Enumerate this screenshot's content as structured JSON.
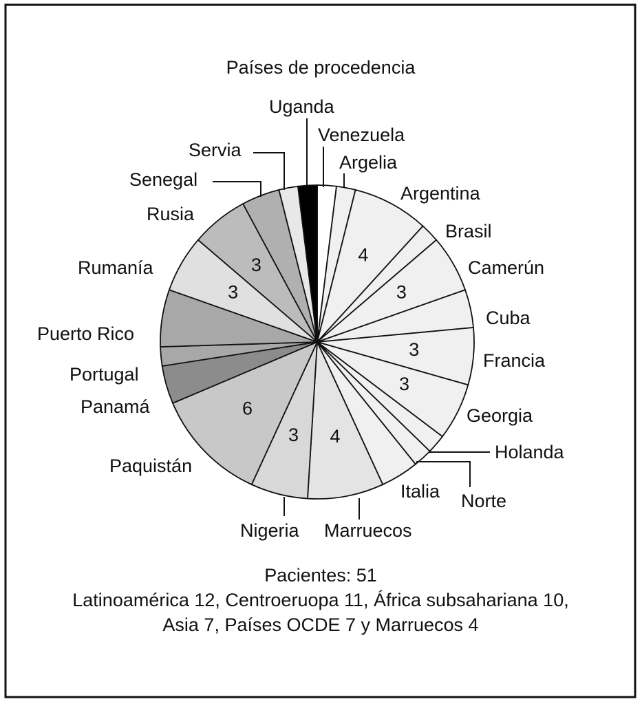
{
  "chart_data": {
    "type": "pie",
    "title": "Países de procedencia",
    "categories": [
      "Venezuela",
      "Argelia",
      "Argentina",
      "Brasil",
      "Camerún",
      "Cuba",
      "Francia",
      "Georgia",
      "Holanda",
      "Norte",
      "Italia",
      "Marruecos",
      "Nigeria",
      "Paquistán",
      "Panamá",
      "Portugal",
      "Puerto Rico",
      "Rumanía",
      "Rusia",
      "Senegal",
      "Servia",
      "Uganda"
    ],
    "values": [
      1,
      1,
      4,
      1,
      3,
      2,
      3,
      3,
      1,
      1,
      2,
      4,
      3,
      6,
      2,
      1,
      3,
      3,
      3,
      2,
      1,
      1
    ],
    "value_labels": [
      null,
      null,
      "4",
      null,
      "3",
      null,
      "3",
      "3",
      null,
      null,
      null,
      "4",
      "3",
      "6",
      null,
      null,
      null,
      "3",
      "3",
      null,
      null,
      null
    ],
    "colors": [
      "#ffffff",
      "#f0f0f0",
      "#f0f0f0",
      "#f0f0f0",
      "#f0f0f0",
      "#f0f0f0",
      "#f0f0f0",
      "#f0f0f0",
      "#f0f0f0",
      "#f0f0f0",
      "#f0f0f0",
      "#e4e4e4",
      "#d8d8d8",
      "#c8c8c8",
      "#8c8c8c",
      "#a8a8a8",
      "#a8a8a8",
      "#e0e0e0",
      "#bcbcbc",
      "#b0b0b0",
      "#e8e8e8",
      "#000000"
    ],
    "notes": [
      "Pacientes: 51",
      "Latinoamérica 12, Centroeruopa 11, África subsahariana 10,",
      "Asia 7, Países OCDE 7 y  Marruecos 4"
    ]
  }
}
